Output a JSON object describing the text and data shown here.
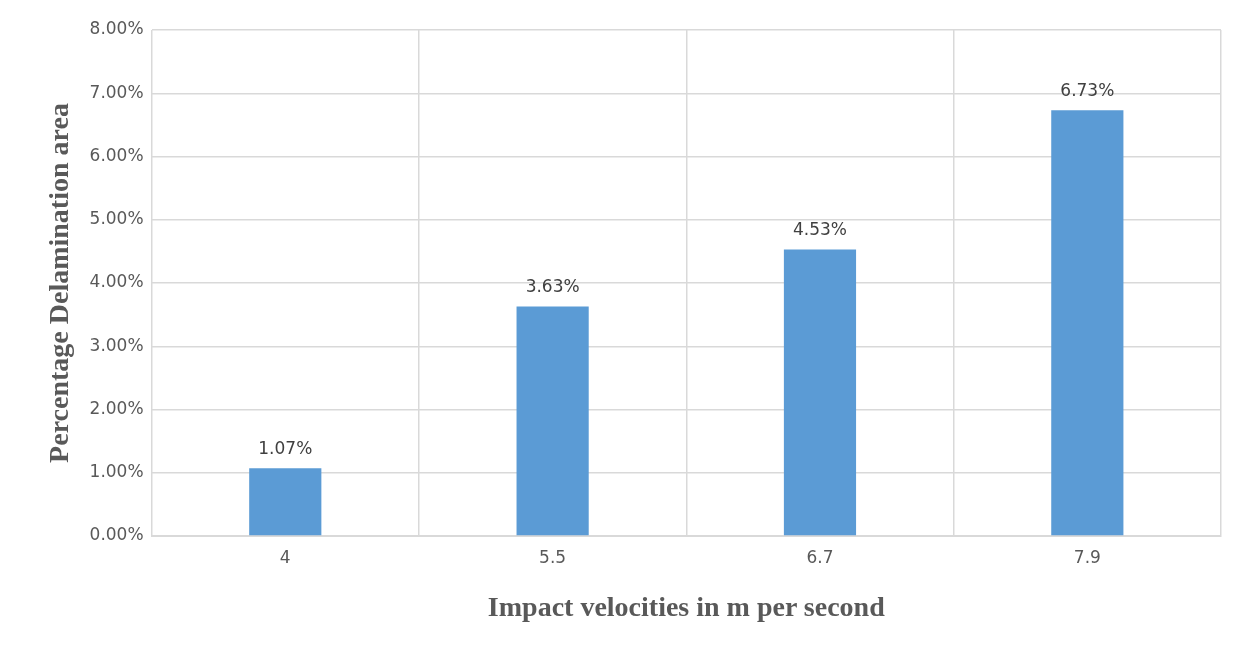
{
  "chart_data": {
    "type": "bar",
    "xlabel": "Impact velocities in m per second",
    "ylabel": "Percentage Delamination area",
    "categories": [
      "4",
      "5.5",
      "6.7",
      "7.9"
    ],
    "values": [
      1.07,
      3.63,
      4.53,
      6.73
    ],
    "color": "#5b9bd5",
    "value_labels": [
      "1.07%",
      "3.63%",
      "4.53%",
      "6.73%"
    ],
    "ylim": [
      0,
      8
    ],
    "yticks": [
      {
        "value": 0,
        "label": "0.00%"
      },
      {
        "value": 1,
        "label": "1.00%"
      },
      {
        "value": 2,
        "label": "2.00%"
      },
      {
        "value": 3,
        "label": "3.00%"
      },
      {
        "value": 4,
        "label": "4.00%"
      },
      {
        "value": 5,
        "label": "5.00%"
      },
      {
        "value": 6,
        "label": "6.00%"
      },
      {
        "value": 7,
        "label": "7.00%"
      },
      {
        "value": 8,
        "label": "8.00%"
      }
    ],
    "grid": true
  }
}
